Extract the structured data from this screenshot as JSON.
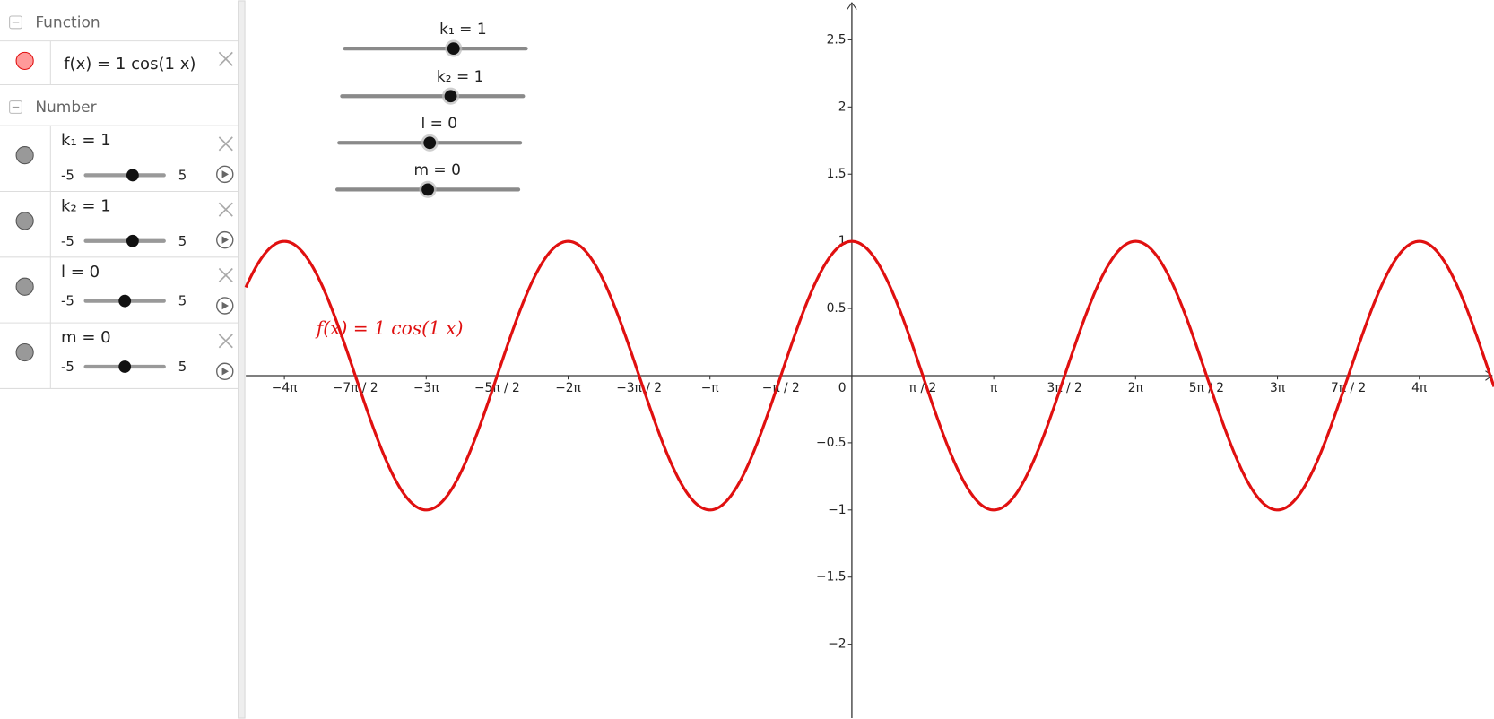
{
  "algebra_view": {
    "function_section": "Function",
    "number_section": "Number"
  },
  "function": {
    "definition": "f(x) = 1 cos(1 x)",
    "color": "#e01010"
  },
  "sliders": [
    {
      "label": "k₁ = 1",
      "value": 1,
      "min": -5,
      "max": 5
    },
    {
      "label": "k₂ = 1",
      "value": 1,
      "min": -5,
      "max": 5
    },
    {
      "label": "l = 0",
      "value": 0,
      "min": -5,
      "max": 5
    },
    {
      "label": "m = 0",
      "value": 0,
      "min": -5,
      "max": 5
    }
  ],
  "graph": {
    "type": "function",
    "xlim": [
      -13.42,
      14.22
    ],
    "ylim": [
      -2.55,
      2.79
    ],
    "xticks": [
      {
        "value": -12.566,
        "label": "−4π"
      },
      {
        "value": -10.996,
        "label": "−7π / 2"
      },
      {
        "value": -9.425,
        "label": "−3π"
      },
      {
        "value": -7.854,
        "label": "−5π / 2"
      },
      {
        "value": -6.283,
        "label": "−2π"
      },
      {
        "value": -4.712,
        "label": "−3π / 2"
      },
      {
        "value": -3.142,
        "label": "−π"
      },
      {
        "value": -1.571,
        "label": "−π / 2"
      },
      0,
      {
        "value": 1.571,
        "label": "π / 2"
      },
      {
        "value": 3.142,
        "label": "π"
      },
      {
        "value": 4.712,
        "label": "3π / 2"
      },
      {
        "value": 6.283,
        "label": "2π"
      },
      {
        "value": 7.854,
        "label": "5π / 2"
      },
      {
        "value": 9.425,
        "label": "3π"
      },
      {
        "value": 10.996,
        "label": "7π / 2"
      },
      {
        "value": 12.566,
        "label": "4π"
      }
    ],
    "yticks": [
      2.5,
      2,
      1.5,
      1,
      0.5,
      {
        "value": -0.5,
        "label": "−0.5"
      },
      {
        "value": -1,
        "label": "−1"
      },
      {
        "value": -1.5,
        "label": "−1.5"
      },
      {
        "value": -2,
        "label": "−2"
      }
    ]
  }
}
